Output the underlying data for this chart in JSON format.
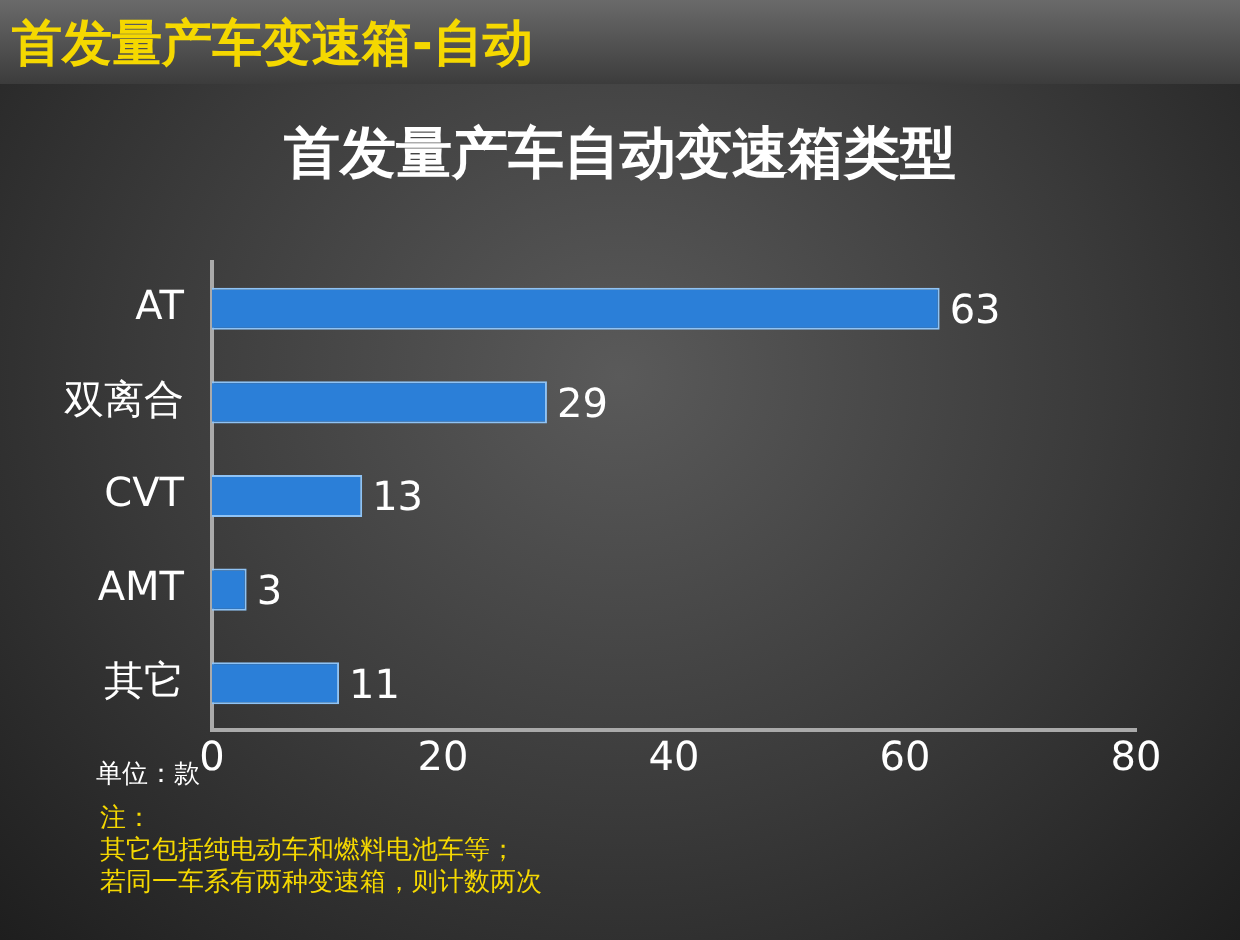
{
  "chart_data": {
    "type": "bar",
    "orientation": "horizontal",
    "title": "首发量产车变速箱-自动",
    "subtitle": "首发量产车自动变速箱类型",
    "categories": [
      "AT",
      "双离合",
      "CVT",
      "AMT",
      "其它"
    ],
    "values": [
      63,
      29,
      13,
      3,
      11
    ],
    "color": "#2b7fd8",
    "data_labels": true,
    "grid": false,
    "legend": false,
    "xlim": [
      0,
      80
    ],
    "xticks": [
      0,
      20,
      40,
      60,
      80
    ],
    "annotations": [
      "单位：款",
      "注：",
      "其它包括纯电动车和燃料电池车等；",
      "若同一车系有两种变速箱，则计数两次"
    ]
  }
}
